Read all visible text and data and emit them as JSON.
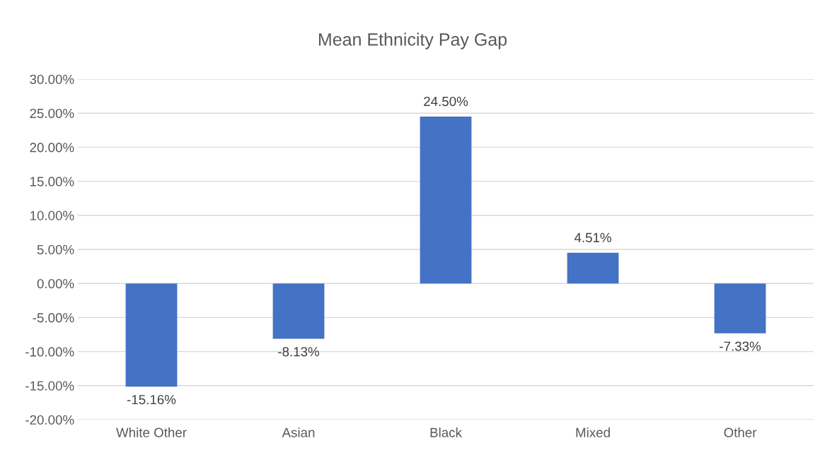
{
  "chart_data": {
    "type": "bar",
    "title": "Mean Ethnicity Pay Gap",
    "categories": [
      "White Other",
      "Asian",
      "Black",
      "Mixed",
      "Other"
    ],
    "values": [
      -15.16,
      -8.13,
      24.5,
      4.51,
      -7.33
    ],
    "value_labels": [
      "-15.16%",
      "-8.13%",
      "24.50%",
      "4.51%",
      "-7.33%"
    ],
    "color": "#4472c4",
    "ylim": [
      -20,
      30
    ],
    "yticks": [
      {
        "value": -20,
        "label": "-20.00%"
      },
      {
        "value": -15,
        "label": "-15.00%"
      },
      {
        "value": -10,
        "label": "-10.00%"
      },
      {
        "value": -5,
        "label": "-5.00%"
      },
      {
        "value": 0,
        "label": "0.00%"
      },
      {
        "value": 5,
        "label": "5.00%"
      },
      {
        "value": 10,
        "label": "10.00%"
      },
      {
        "value": 15,
        "label": "15.00%"
      },
      {
        "value": 20,
        "label": "20.00%"
      },
      {
        "value": 25,
        "label": "25.00%"
      },
      {
        "value": 30,
        "label": "30.00%"
      }
    ],
    "grid": "y"
  }
}
